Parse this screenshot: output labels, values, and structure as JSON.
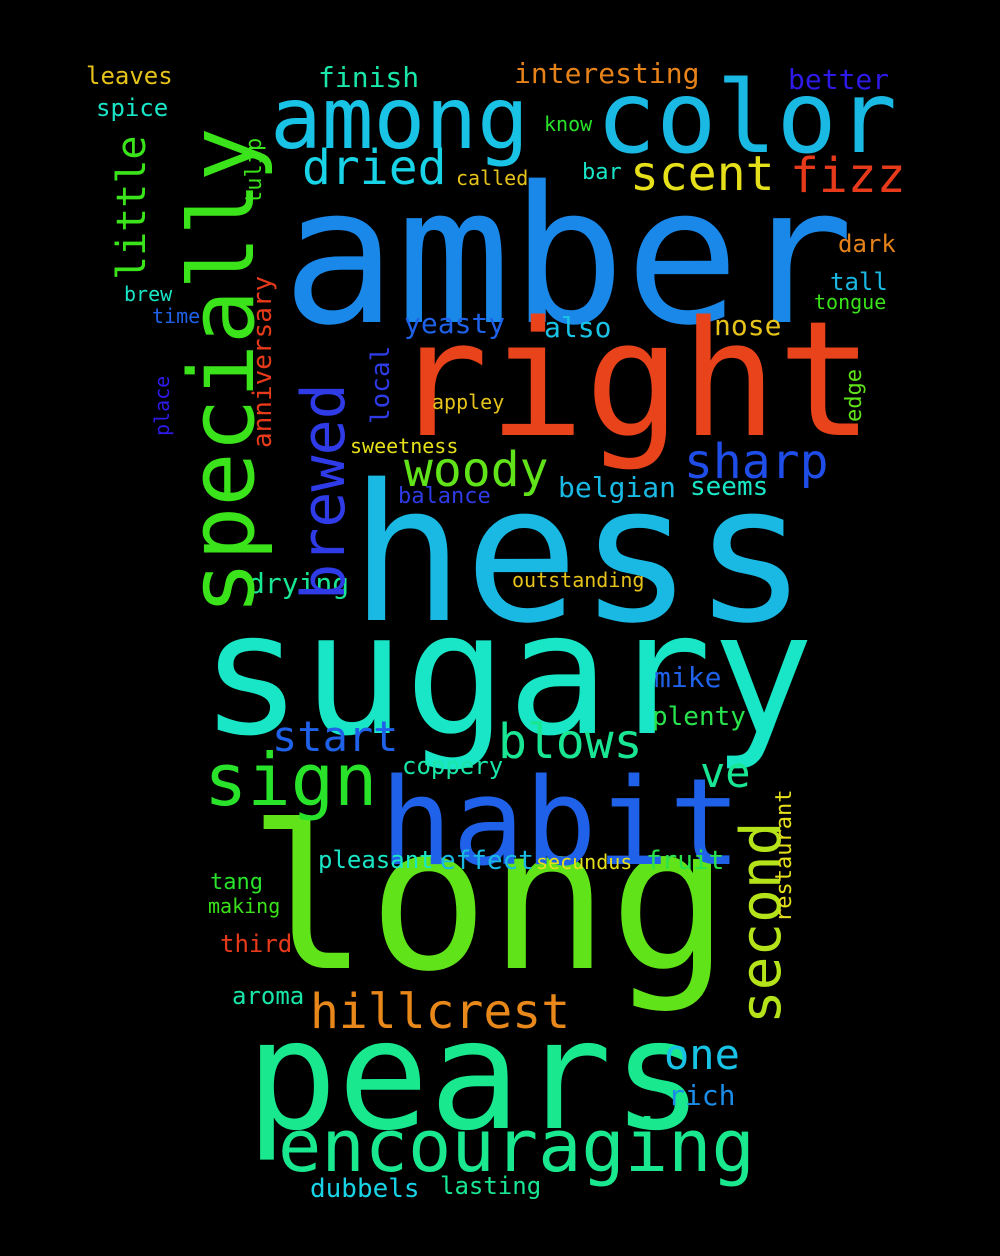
{
  "background": "#000000",
  "words": [
    {
      "text": "amber",
      "color": "#1a88e8"
    },
    {
      "text": "hess",
      "color": "#19b9e3"
    },
    {
      "text": "sugary",
      "color": "#19e6c6"
    },
    {
      "text": "long",
      "color": "#61e31a"
    },
    {
      "text": "pears",
      "color": "#19e88f"
    },
    {
      "text": "right",
      "color": "#e8431a"
    },
    {
      "text": "habit",
      "color": "#1f61e8"
    },
    {
      "text": "specially",
      "color": "#3ae31a"
    },
    {
      "text": "color",
      "color": "#19b9e3"
    },
    {
      "text": "among",
      "color": "#19c3e6"
    },
    {
      "text": "encouraging",
      "color": "#19e88f"
    },
    {
      "text": "sign",
      "color": "#29e32b"
    },
    {
      "text": "brewed",
      "color": "#2e3be6"
    },
    {
      "text": "second",
      "color": "#b5e31a"
    },
    {
      "text": "hillcrest",
      "color": "#e8881a"
    },
    {
      "text": "blows",
      "color": "#19e693"
    },
    {
      "text": "woody",
      "color": "#61e31a"
    },
    {
      "text": "sharp",
      "color": "#1f4de8"
    },
    {
      "text": "scent",
      "color": "#e6e01a"
    },
    {
      "text": "dried",
      "color": "#19d4e6"
    },
    {
      "text": "fizz",
      "color": "#e63a1a"
    },
    {
      "text": "start",
      "color": "#1f61e8"
    },
    {
      "text": "ve",
      "color": "#19e693"
    },
    {
      "text": "one",
      "color": "#19c3e6"
    },
    {
      "text": "little",
      "color": "#3ae31a"
    },
    {
      "text": "interesting",
      "color": "#e6821a"
    },
    {
      "text": "better",
      "color": "#2e1ae6"
    },
    {
      "text": "finish",
      "color": "#19e6a8"
    },
    {
      "text": "anniversary",
      "color": "#e63a1a"
    },
    {
      "text": "rich",
      "color": "#1a8ce8"
    },
    {
      "text": "yeasty",
      "color": "#1f61e8"
    },
    {
      "text": "also",
      "color": "#19c3e6"
    },
    {
      "text": "nose",
      "color": "#e6c31a"
    },
    {
      "text": "mike",
      "color": "#1f61e8"
    },
    {
      "text": "belgian",
      "color": "#19b9e3"
    },
    {
      "text": "seems",
      "color": "#19e6c6"
    },
    {
      "text": "plenty",
      "color": "#29e34d"
    },
    {
      "text": "fruit",
      "color": "#29e34d"
    },
    {
      "text": "coppery",
      "color": "#19e6a8"
    },
    {
      "text": "local",
      "color": "#2e3be6"
    },
    {
      "text": "drying",
      "color": "#19e693"
    },
    {
      "text": "effect",
      "color": "#19b9e3"
    },
    {
      "text": "pleasant",
      "color": "#19e6c6"
    },
    {
      "text": "dubbels",
      "color": "#19d4e6"
    },
    {
      "text": "lasting",
      "color": "#19e693"
    },
    {
      "text": "aroma",
      "color": "#19e6a8"
    },
    {
      "text": "third",
      "color": "#e63a1a"
    },
    {
      "text": "tall",
      "color": "#19b9e3"
    },
    {
      "text": "dark",
      "color": "#e6821a"
    },
    {
      "text": "restaurant",
      "color": "#e6e01a"
    },
    {
      "text": "leaves",
      "color": "#e6c31a"
    },
    {
      "text": "spice",
      "color": "#19e6c6"
    },
    {
      "text": "balance",
      "color": "#2e3be6"
    },
    {
      "text": "outstanding",
      "color": "#e6c31a"
    },
    {
      "text": "tulip",
      "color": "#3ae31a"
    },
    {
      "text": "brew",
      "color": "#19e6c6"
    },
    {
      "text": "time",
      "color": "#1f61e8"
    },
    {
      "text": "tang",
      "color": "#29e32b"
    },
    {
      "text": "making",
      "color": "#3ae31a"
    },
    {
      "text": "secundus",
      "color": "#e6e01a"
    },
    {
      "text": "sweetness",
      "color": "#e6e01a"
    },
    {
      "text": "appley",
      "color": "#e6c31a"
    },
    {
      "text": "edge",
      "color": "#61e31a"
    },
    {
      "text": "tongue",
      "color": "#3ae31a"
    },
    {
      "text": "bar",
      "color": "#19e6c6"
    },
    {
      "text": "called",
      "color": "#e6c31a"
    },
    {
      "text": "know",
      "color": "#29e32b"
    },
    {
      "text": "place",
      "color": "#2e1ae6"
    }
  ]
}
